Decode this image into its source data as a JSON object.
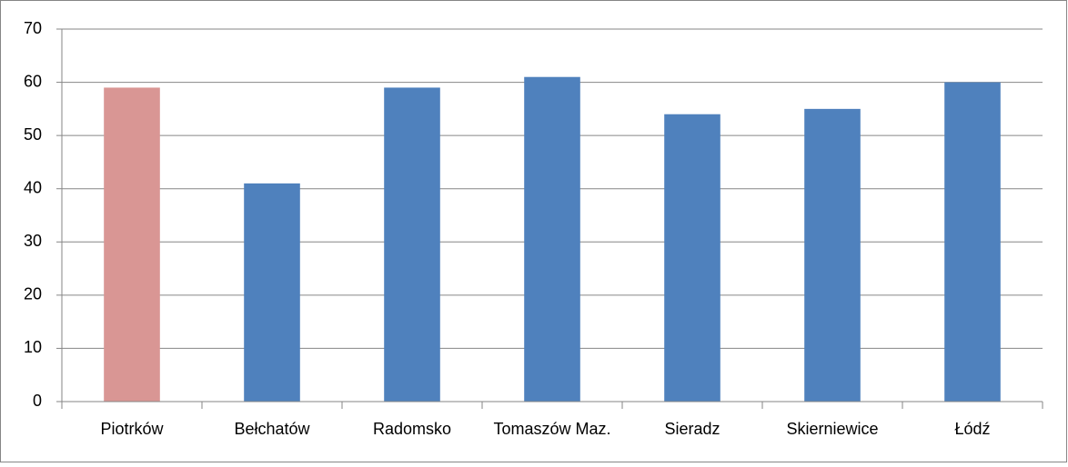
{
  "chart_data": {
    "type": "bar",
    "categories": [
      "Piotrków",
      "Bełchatów",
      "Radomsko",
      "Tomaszów Maz.",
      "Sieradz",
      "Skierniewice",
      "Łódź"
    ],
    "values": [
      59,
      41,
      59,
      61,
      54,
      55,
      60
    ],
    "colors": [
      "#d99694",
      "#4f81bd",
      "#4f81bd",
      "#4f81bd",
      "#4f81bd",
      "#4f81bd",
      "#4f81bd"
    ],
    "ylim": [
      0,
      70
    ],
    "yticks": [
      0,
      10,
      20,
      30,
      40,
      50,
      60,
      70
    ],
    "grid": true
  }
}
